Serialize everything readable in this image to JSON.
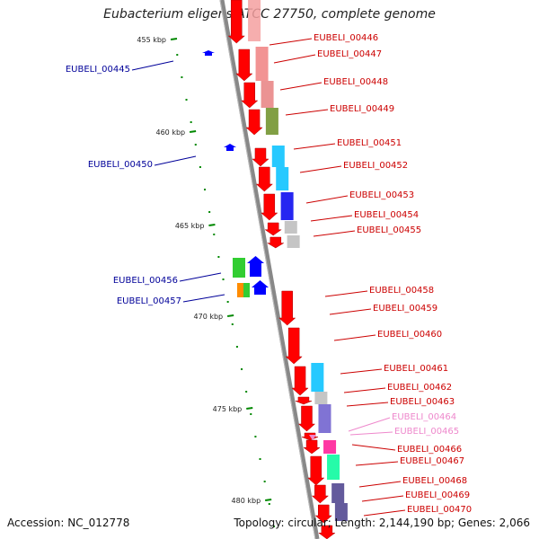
{
  "title": "Eubacterium eligens ATCC 27750, complete genome",
  "footer": {
    "accession": "Accession: NC_012778",
    "summary": "Topology: circular; Length: 2,144,190 bp; Genes: 2,066"
  },
  "colors": {
    "forward_gene": "#ff0000",
    "reverse_gene": "#0000ff",
    "forward_label": "#cc0000",
    "reverse_label": "#000099",
    "faded_label": "#ee88cc",
    "tick": "#008800",
    "backbone": "#888888"
  },
  "tick_labels": [
    "455 kbp",
    "460 kbp",
    "465 kbp",
    "470 kbp",
    "475 kbp",
    "480 kbp"
  ],
  "forward_genes": [
    {
      "label": "EUBELI_00446",
      "cog_color": "#f4a0a0"
    },
    {
      "label": "EUBELI_00447",
      "cog_color": "#f08080"
    },
    {
      "label": "EUBELI_00448",
      "cog_color": "#e88080"
    },
    {
      "label": "EUBELI_00449",
      "cog_color": "#6b8e23"
    },
    {
      "label": "EUBELI_00451",
      "cog_color": "#00bfff"
    },
    {
      "label": "EUBELI_00452",
      "cog_color": "#00bfff"
    },
    {
      "label": "EUBELI_00453",
      "cog_color": "#0000ee"
    },
    {
      "label": "EUBELI_00454",
      "cog_color": "#bbbbbb"
    },
    {
      "label": "EUBELI_00455",
      "cog_color": "#bbbbbb"
    },
    {
      "label": "EUBELI_00458",
      "cog_color": ""
    },
    {
      "label": "EUBELI_00459",
      "cog_color": ""
    },
    {
      "label": "EUBELI_00460",
      "cog_color": ""
    },
    {
      "label": "EUBELI_00461",
      "cog_color": "#00bfff"
    },
    {
      "label": "EUBELI_00462",
      "cog_color": "#bbbbbb"
    },
    {
      "label": "EUBELI_00463",
      "cog_color": "#6a5acd"
    },
    {
      "label": "EUBELI_00464",
      "cog_color": ""
    },
    {
      "label": "EUBELI_00465",
      "cog_color": ""
    },
    {
      "label": "EUBELI_00466",
      "cog_color": "#ff1493"
    },
    {
      "label": "EUBELI_00467",
      "cog_color": "#00fa9a"
    },
    {
      "label": "EUBELI_00468",
      "cog_color": "#483d8b"
    },
    {
      "label": "EUBELI_00469",
      "cog_color": "#483d8b"
    },
    {
      "label": "EUBELI_00470",
      "cog_color": ""
    }
  ],
  "reverse_genes": [
    {
      "label": "EUBELI_00445",
      "cog_color": ""
    },
    {
      "label": "EUBELI_00450",
      "cog_color": ""
    },
    {
      "label": "EUBELI_00456",
      "cog_color": "#32cd32"
    },
    {
      "label": "EUBELI_00457",
      "cog_color": "#ff8c00"
    }
  ]
}
